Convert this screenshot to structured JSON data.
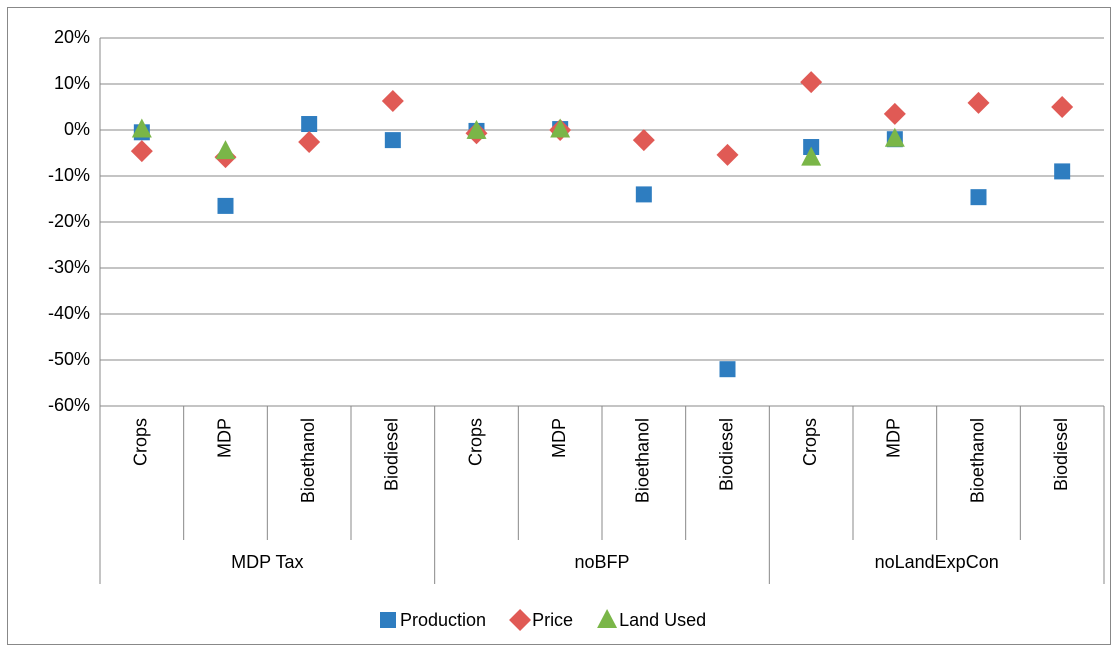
{
  "chart_data": {
    "type": "scatter",
    "groups": [
      {
        "name": "MDP Tax",
        "categories": [
          "Crops",
          "MDP",
          "Bioethanol",
          "Biodiesel"
        ]
      },
      {
        "name": "noBFP",
        "categories": [
          "Crops",
          "MDP",
          "Bioethanol",
          "Biodiesel"
        ]
      },
      {
        "name": "noLandExpCon",
        "categories": [
          "Crops",
          "MDP",
          "Bioethanol",
          "Biodiesel"
        ]
      }
    ],
    "series": [
      {
        "name": "Production",
        "color": "#2e7dc0",
        "marker": "square",
        "values": [
          -0.5,
          -16.5,
          1.3,
          -2.2,
          -0.2,
          0.2,
          -14,
          -52,
          -3.7,
          -2,
          -14.6,
          -9
        ]
      },
      {
        "name": "Price",
        "color": "#e05a55",
        "marker": "diamond",
        "values": [
          -4.6,
          -5.9,
          -2.6,
          6.3,
          -0.7,
          0,
          -2.2,
          -5.4,
          10.4,
          3.5,
          5.9,
          5
        ]
      },
      {
        "name": "Land Used",
        "color": "#7ab648",
        "marker": "triangle",
        "values": [
          0.1,
          -4.6,
          null,
          null,
          -0.2,
          0.1,
          null,
          null,
          -6,
          -1.9,
          null,
          null
        ]
      }
    ],
    "ylim": [
      -60,
      20
    ],
    "yticks": [
      {
        "value": -60,
        "label": "-60%"
      },
      {
        "value": -50,
        "label": "-50%"
      },
      {
        "value": -40,
        "label": "-40%"
      },
      {
        "value": -30,
        "label": "-30%"
      },
      {
        "value": -20,
        "label": "-20%"
      },
      {
        "value": -10,
        "label": "-10%"
      },
      {
        "value": 0,
        "label": "0%"
      },
      {
        "value": 10,
        "label": "10%"
      },
      {
        "value": 20,
        "label": "20%"
      }
    ],
    "grid": true,
    "legend": "bottom"
  }
}
